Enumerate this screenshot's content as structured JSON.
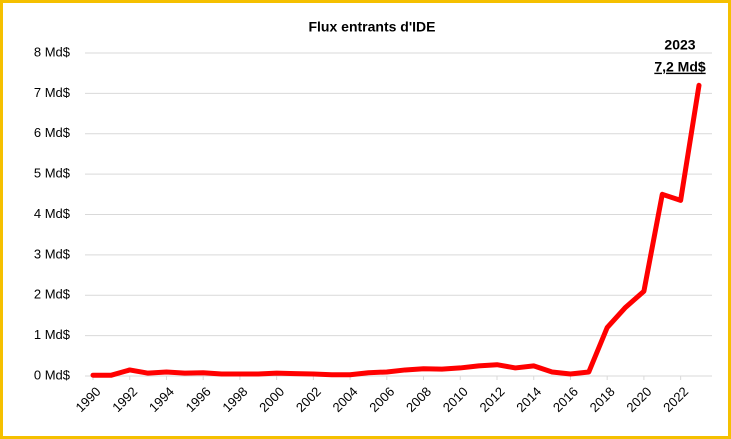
{
  "chart_data": {
    "type": "line",
    "title": "Flux entrants d'IDE",
    "x": [
      1990,
      1991,
      1992,
      1993,
      1994,
      1995,
      1996,
      1997,
      1998,
      1999,
      2000,
      2001,
      2002,
      2003,
      2004,
      2005,
      2006,
      2007,
      2008,
      2009,
      2010,
      2011,
      2012,
      2013,
      2014,
      2015,
      2016,
      2017,
      2018,
      2019,
      2020,
      2021,
      2022,
      2023
    ],
    "series": [
      {
        "name": "Flux entrants d'IDE",
        "color": "#ff0000",
        "values": [
          0.02,
          0.02,
          0.15,
          0.07,
          0.1,
          0.07,
          0.08,
          0.05,
          0.05,
          0.05,
          0.07,
          0.06,
          0.05,
          0.03,
          0.03,
          0.08,
          0.1,
          0.15,
          0.18,
          0.17,
          0.2,
          0.25,
          0.28,
          0.2,
          0.25,
          0.1,
          0.05,
          0.1,
          1.2,
          1.7,
          2.1,
          4.5,
          4.35,
          7.2
        ]
      }
    ],
    "xlim": [
      1990,
      2023
    ],
    "xticks": [
      1990,
      1992,
      1994,
      1996,
      1998,
      2000,
      2002,
      2004,
      2006,
      2008,
      2010,
      2012,
      2014,
      2016,
      2018,
      2020,
      2022
    ],
    "ylim": [
      0,
      8
    ],
    "yticks": [
      {
        "value": 0,
        "label": "0 Md$"
      },
      {
        "value": 1,
        "label": "1 Md$"
      },
      {
        "value": 2,
        "label": "2 Md$"
      },
      {
        "value": 3,
        "label": "3 Md$"
      },
      {
        "value": 4,
        "label": "4 Md$"
      },
      {
        "value": 5,
        "label": "5 Md$"
      },
      {
        "value": 6,
        "label": "6 Md$"
      },
      {
        "value": 7,
        "label": "7 Md$"
      },
      {
        "value": 8,
        "label": "8 Md$"
      }
    ],
    "grid": true,
    "annotation": {
      "title": "2023",
      "text": "7,2 Md$"
    }
  }
}
